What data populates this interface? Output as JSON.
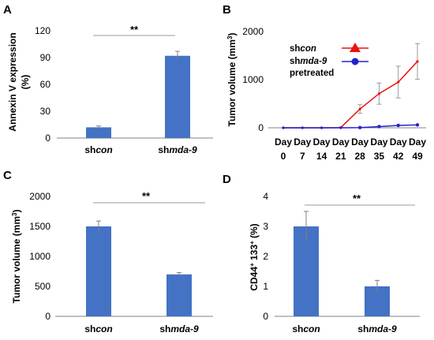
{
  "colors": {
    "bar": "#4472c4",
    "shcon_line": "#ee1111",
    "shmda9_line": "#2222cc"
  },
  "chart_data": [
    {
      "panel": "A",
      "type": "bar",
      "ylabel": "Annexin V expression (%)",
      "ylabel_lines": [
        "Annexin V expression",
        "(%)"
      ],
      "categories": [
        {
          "prefix": "sh",
          "italic": "con"
        },
        {
          "prefix": "sh",
          "italic": "mda-9"
        }
      ],
      "values": [
        12,
        92
      ],
      "errors": [
        1.5,
        5
      ],
      "ylim": [
        0,
        120
      ],
      "yticks": [
        0,
        30,
        60,
        90,
        120
      ],
      "significance": "**"
    },
    {
      "panel": "B",
      "type": "line",
      "ylabel": "Tumor volume (mm³)",
      "ylabel_parts": {
        "main": "Tumor volume (mm",
        "sup": "3",
        "end": ")"
      },
      "x": [
        "0",
        "7",
        "14",
        "21",
        "28",
        "35",
        "42",
        "49"
      ],
      "x_prefix": "Day",
      "ylim": [
        0,
        2000
      ],
      "yticks": [
        0,
        1000,
        2000
      ],
      "series": [
        {
          "name": "shcon",
          "name_parts": {
            "prefix": "sh",
            "italic": "con"
          },
          "marker": "triangle",
          "values": [
            0,
            0,
            0,
            5,
            390,
            710,
            950,
            1380
          ],
          "errors": [
            0,
            0,
            0,
            10,
            90,
            220,
            330,
            370
          ]
        },
        {
          "name": "shmda-9 pretreated",
          "name_parts": {
            "prefix": "sh",
            "italic": "mda-9",
            "line2": "pretreated"
          },
          "marker": "circle",
          "values": [
            0,
            0,
            0,
            0,
            5,
            25,
            50,
            60
          ],
          "errors": [
            0,
            0,
            0,
            0,
            0,
            0,
            0,
            0
          ]
        }
      ]
    },
    {
      "panel": "C",
      "type": "bar",
      "ylabel": "Tumor volume (mm³)",
      "ylabel_parts": {
        "main": "Tumor volume (mm",
        "sup": "3",
        "end": ")"
      },
      "categories": [
        {
          "prefix": "sh",
          "italic": "con"
        },
        {
          "prefix": "sh",
          "italic": "mda-9"
        }
      ],
      "values": [
        1500,
        700
      ],
      "errors": [
        90,
        30
      ],
      "ylim": [
        0,
        2000
      ],
      "yticks": [
        0,
        500,
        1000,
        1500,
        2000
      ],
      "significance": "**"
    },
    {
      "panel": "D",
      "type": "bar",
      "ylabel": "CD44⁺ 133⁺ (%)",
      "ylabel_parts": {
        "a": "CD44",
        "sup1": "+",
        "b": " 133",
        "sup2": "+",
        "c": " (%)"
      },
      "categories": [
        {
          "prefix": "sh",
          "italic": "con"
        },
        {
          "prefix": "sh",
          "italic": "mda-9"
        }
      ],
      "values": [
        3,
        1
      ],
      "errors": [
        0.5,
        0.2
      ],
      "ylim": [
        0,
        4
      ],
      "yticks": [
        0,
        1,
        2,
        3,
        4
      ],
      "significance": "**"
    }
  ]
}
